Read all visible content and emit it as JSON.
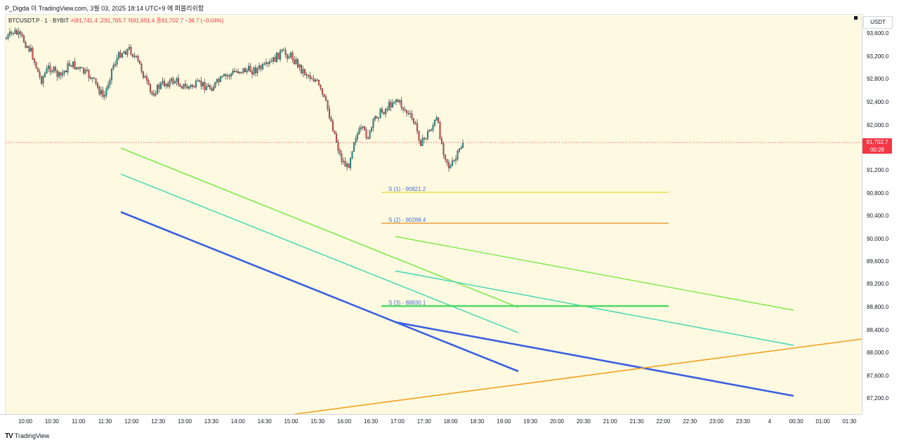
{
  "header": {
    "title": "P_Digda 이 TradingView.com, 3월 03, 2025 18:14 UTC+9 에 퍼블리쉬함"
  },
  "legend": {
    "symbol": "BTCUSDT.P · 1 · BYBIT",
    "open": "시91,741.4",
    "high": "고91,765.7",
    "low": "저91,691.4",
    "close": "종91,702.7",
    "change": "−38.7 (−0.04%)"
  },
  "price_axis": {
    "currency": "USDT",
    "labels": [
      "93,600.0",
      "93,200.0",
      "92,800.0",
      "92,400.0",
      "92,000.0",
      "91,200.0",
      "90,800.0",
      "90,400.0",
      "90,000.0",
      "89,600.0",
      "89,200.0",
      "88,800.0",
      "88,400.0",
      "88,000.0",
      "87,600.0",
      "87,200.0"
    ],
    "current_price": "91,702.7",
    "countdown": "00:28"
  },
  "time_axis": {
    "labels": [
      "10:00",
      "10:30",
      "11:00",
      "11:30",
      "12:00",
      "12:30",
      "13:00",
      "13:30",
      "14:00",
      "14:30",
      "15:00",
      "15:30",
      "16:00",
      "16:30",
      "17:00",
      "17:30",
      "18:00",
      "18:30",
      "19:00",
      "19:30",
      "20:00",
      "20:30",
      "21:00",
      "21:30",
      "22:00",
      "22:30",
      "23:00",
      "23:30",
      "4",
      "00:30",
      "01:00",
      "01:30"
    ]
  },
  "levels": [
    {
      "label": "S (1) - 90821.2",
      "price": 90821.2,
      "color": "#e8e04a"
    },
    {
      "label": "S (2) - 90288.4",
      "price": 90288.4,
      "color": "#e8a040"
    },
    {
      "label": "S (3) - 88830.1",
      "price": 88830.1,
      "color": "#4cd964"
    }
  ],
  "colors": {
    "up": "#26a69a",
    "down": "#ef5350",
    "blue_line": "#3b5fe0",
    "teal_line": "#3fd6b0",
    "green_line": "#7ee84a",
    "orange_line": "#f0a020",
    "current": "#f23645"
  },
  "footer": {
    "brand": "TradingView",
    "logo": "TV"
  }
}
